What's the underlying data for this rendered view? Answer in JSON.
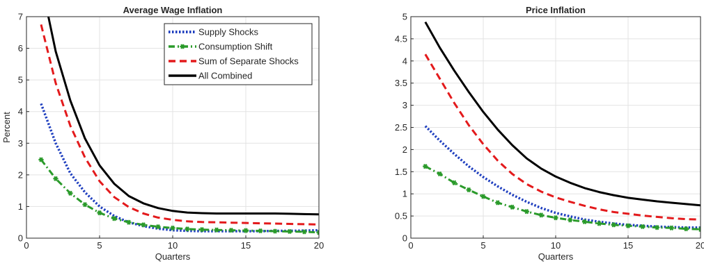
{
  "chart_data": [
    {
      "type": "line",
      "title": "Average Wage Inflation",
      "xlabel": "Quarters",
      "ylabel": "Percent",
      "xlim": [
        0,
        20
      ],
      "ylim": [
        0,
        7
      ],
      "xticks": [
        0,
        5,
        10,
        15,
        20
      ],
      "yticks": [
        0,
        1,
        2,
        3,
        4,
        5,
        6,
        7
      ],
      "grid": true,
      "legend": "top-right",
      "series": [
        {
          "name": "Supply Shocks",
          "color": "#1f3fbf",
          "style": "dotted",
          "x": [
            1,
            2,
            3,
            4,
            5,
            6,
            7,
            8,
            9,
            10,
            11,
            12,
            13,
            14,
            15,
            16,
            17,
            18,
            19,
            20
          ],
          "y": [
            4.25,
            3.0,
            2.05,
            1.45,
            1.0,
            0.7,
            0.5,
            0.38,
            0.3,
            0.25,
            0.23,
            0.22,
            0.22,
            0.22,
            0.22,
            0.22,
            0.23,
            0.23,
            0.24,
            0.25
          ]
        },
        {
          "name": "Consumption Shift",
          "color": "#2a9a2a",
          "style": "dashdot-marker",
          "x": [
            1,
            2,
            3,
            4,
            5,
            6,
            7,
            8,
            9,
            10,
            11,
            12,
            13,
            14,
            15,
            16,
            17,
            18,
            19,
            20
          ],
          "y": [
            2.48,
            1.88,
            1.42,
            1.06,
            0.8,
            0.62,
            0.5,
            0.42,
            0.36,
            0.32,
            0.29,
            0.27,
            0.26,
            0.25,
            0.24,
            0.23,
            0.22,
            0.21,
            0.2,
            0.18
          ]
        },
        {
          "name": "Sum of Separate Shocks",
          "color": "#e31a1c",
          "style": "dashed",
          "x": [
            1,
            2,
            3,
            4,
            5,
            6,
            7,
            8,
            9,
            10,
            11,
            12,
            13,
            14,
            15,
            16,
            17,
            18,
            19,
            20
          ],
          "y": [
            6.75,
            4.9,
            3.55,
            2.55,
            1.8,
            1.3,
            0.98,
            0.78,
            0.65,
            0.58,
            0.53,
            0.51,
            0.5,
            0.49,
            0.48,
            0.47,
            0.46,
            0.45,
            0.44,
            0.43
          ]
        },
        {
          "name": "All Combined",
          "color": "#000000",
          "style": "solid",
          "x": [
            1,
            1.5,
            2,
            3,
            4,
            5,
            6,
            7,
            8,
            9,
            10,
            11,
            12,
            13,
            14,
            15,
            16,
            17,
            18,
            19,
            20
          ],
          "y": [
            7.6,
            7.0,
            5.9,
            4.35,
            3.15,
            2.3,
            1.72,
            1.33,
            1.1,
            0.95,
            0.86,
            0.81,
            0.79,
            0.78,
            0.78,
            0.78,
            0.78,
            0.78,
            0.77,
            0.76,
            0.75
          ]
        }
      ]
    },
    {
      "type": "line",
      "title": "Price Inflation",
      "xlabel": "Quarters",
      "ylabel": "",
      "xlim": [
        0,
        20
      ],
      "ylim": [
        0,
        5
      ],
      "xticks": [
        0,
        5,
        10,
        15,
        20
      ],
      "yticks": [
        0,
        0.5,
        1,
        1.5,
        2,
        2.5,
        3,
        3.5,
        4,
        4.5,
        5
      ],
      "grid": true,
      "series": [
        {
          "name": "Supply Shocks",
          "color": "#1f3fbf",
          "style": "dotted",
          "x": [
            1,
            2,
            3,
            4,
            5,
            6,
            7,
            8,
            9,
            10,
            11,
            12,
            13,
            14,
            15,
            16,
            17,
            18,
            19,
            20
          ],
          "y": [
            2.53,
            2.2,
            1.9,
            1.62,
            1.38,
            1.17,
            0.98,
            0.82,
            0.68,
            0.57,
            0.49,
            0.42,
            0.37,
            0.33,
            0.3,
            0.28,
            0.26,
            0.25,
            0.24,
            0.24
          ]
        },
        {
          "name": "Consumption Shift",
          "color": "#2a9a2a",
          "style": "dashdot-marker",
          "x": [
            1,
            2,
            3,
            4,
            5,
            6,
            7,
            8,
            9,
            10,
            11,
            12,
            13,
            14,
            15,
            16,
            17,
            18,
            19,
            20
          ],
          "y": [
            1.62,
            1.45,
            1.25,
            1.09,
            0.94,
            0.8,
            0.7,
            0.6,
            0.52,
            0.46,
            0.41,
            0.37,
            0.33,
            0.3,
            0.28,
            0.26,
            0.24,
            0.23,
            0.21,
            0.2
          ]
        },
        {
          "name": "Sum of Separate Shocks",
          "color": "#e31a1c",
          "style": "dashed",
          "x": [
            1,
            2,
            3,
            4,
            5,
            6,
            7,
            8,
            9,
            10,
            11,
            12,
            13,
            14,
            15,
            16,
            17,
            18,
            19,
            20
          ],
          "y": [
            4.15,
            3.6,
            3.05,
            2.55,
            2.12,
            1.75,
            1.45,
            1.22,
            1.05,
            0.92,
            0.82,
            0.73,
            0.65,
            0.59,
            0.55,
            0.51,
            0.48,
            0.45,
            0.43,
            0.42
          ]
        },
        {
          "name": "All Combined",
          "color": "#000000",
          "style": "solid",
          "x": [
            1,
            2,
            3,
            4,
            5,
            6,
            7,
            8,
            9,
            10,
            11,
            12,
            13,
            14,
            15,
            16,
            17,
            18,
            19,
            20
          ],
          "y": [
            4.88,
            4.3,
            3.78,
            3.3,
            2.85,
            2.45,
            2.1,
            1.8,
            1.57,
            1.39,
            1.25,
            1.13,
            1.04,
            0.97,
            0.91,
            0.87,
            0.83,
            0.8,
            0.77,
            0.74
          ]
        }
      ]
    }
  ]
}
